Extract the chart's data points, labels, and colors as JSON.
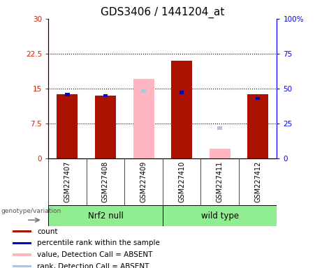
{
  "title": "GDS3406 / 1441204_at",
  "samples": [
    "GSM227407",
    "GSM227408",
    "GSM227409",
    "GSM227410",
    "GSM227411",
    "GSM227412"
  ],
  "ylim_left": [
    0,
    30
  ],
  "ylim_right": [
    0,
    100
  ],
  "yticks_left": [
    0,
    7.5,
    15,
    22.5,
    30
  ],
  "yticks_right": [
    0,
    25,
    50,
    75,
    100
  ],
  "ytick_labels_left": [
    "0",
    "7.5",
    "15",
    "22.5",
    "30"
  ],
  "ytick_labels_right": [
    "0",
    "25",
    "50",
    "75",
    "100%"
  ],
  "count_values": [
    13.8,
    13.5,
    null,
    21.0,
    null,
    13.8
  ],
  "rank_values": [
    14.0,
    13.8,
    null,
    14.5,
    null,
    13.2
  ],
  "absent_value_values": [
    null,
    null,
    17.0,
    null,
    2.0,
    null
  ],
  "absent_rank_values": [
    null,
    null,
    14.8,
    null,
    6.8,
    null
  ],
  "count_color": "#AA1100",
  "rank_color": "#0000CC",
  "absent_value_color": "#FFB6C1",
  "absent_rank_color": "#B0C4DE",
  "wide_bar_width": 0.55,
  "narrow_bar_width": 0.12,
  "legend_entries": [
    "count",
    "percentile rank within the sample",
    "value, Detection Call = ABSENT",
    "rank, Detection Call = ABSENT"
  ],
  "legend_colors": [
    "#AA1100",
    "#0000CC",
    "#FFB6C1",
    "#B0C4DE"
  ],
  "genotype_label": "genotype/variation",
  "group1_label": "Nrf2 null",
  "group2_label": "wild type",
  "group_color": "#90EE90",
  "title_fontsize": 11,
  "tick_fontsize": 7.5,
  "legend_fontsize": 7.5
}
